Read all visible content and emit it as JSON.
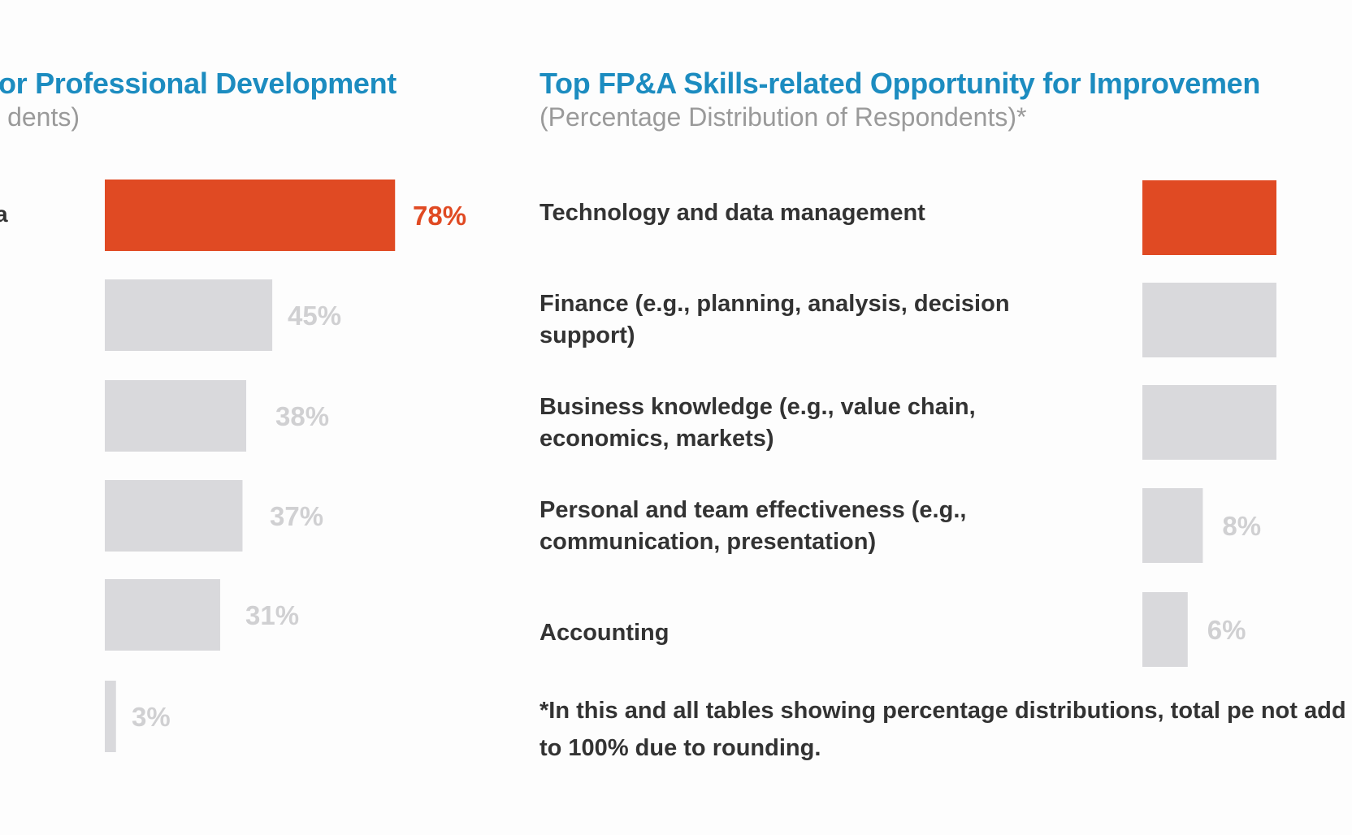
{
  "chart_data": [
    {
      "type": "bar",
      "orientation": "horizontal",
      "title": "or Professional Development",
      "subtitle": "dents)",
      "categories": [
        "a",
        "",
        "",
        "",
        "",
        ""
      ],
      "values": [
        78,
        45,
        38,
        37,
        31,
        3
      ],
      "value_labels": [
        "78%",
        "45%",
        "38%",
        "37%",
        "31%",
        "3%"
      ],
      "highlight_index": 0,
      "colors": {
        "highlight": "#e04a23",
        "default": "#d9d9dc",
        "highlight_label": "#e04a23",
        "default_label": "#d0d0d2"
      }
    },
    {
      "type": "bar",
      "orientation": "horizontal",
      "title": "Top FP&A Skills-related Opportunity for Improvemen",
      "subtitle": "(Percentage Distribution of Respondents)*",
      "categories": [
        "Technology and data management",
        "Finance (e.g., planning, analysis, decision support)",
        "Business knowledge (e.g., value chain, economics, markets)",
        "Personal and team effectiveness (e.g., communication, presentation)",
        "Accounting"
      ],
      "values": [
        null,
        null,
        null,
        8,
        6
      ],
      "value_labels": [
        "",
        "",
        "",
        "8%",
        "6%"
      ],
      "highlight_index": 0,
      "footnote": "*In this and all tables showing percentage distributions, total pe not add to 100% due to rounding.",
      "colors": {
        "highlight": "#e04a23",
        "default": "#d9d9dc",
        "default_label": "#d0d0d2"
      }
    }
  ]
}
